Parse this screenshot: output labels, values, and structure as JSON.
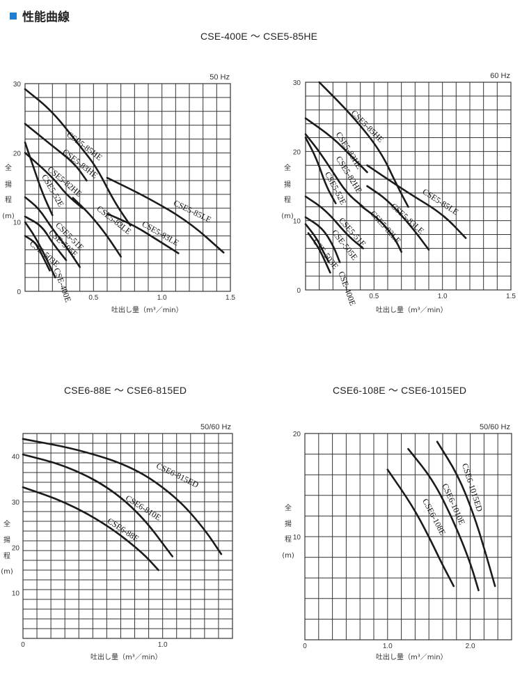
{
  "section_title": "性能曲線",
  "top_range": "CSE-400E ～ CSE5-85HE",
  "chart_data": [
    {
      "id": "c1",
      "type": "line",
      "freq": "50 Hz",
      "xlim": [
        0,
        1.5
      ],
      "ylim": [
        0,
        30
      ],
      "x_ticks": [
        "0.5",
        "1.0",
        "1.5"
      ],
      "y_ticks": [
        "0",
        "10",
        "20",
        "30"
      ],
      "xlabel": "吐出し量（m³／min）",
      "ylabel": [
        "全",
        "揚",
        "程",
        "(m)"
      ],
      "series": [
        {
          "name": "CSE5-85HE",
          "points": [
            [
              0,
              29.2
            ],
            [
              0.2,
              26
            ],
            [
              0.4,
              21
            ],
            [
              0.52,
              18
            ],
            [
              0.65,
              13
            ],
            [
              0.77,
              9.5
            ]
          ]
        },
        {
          "name": "CSE5-83HE",
          "points": [
            [
              0,
              24.2
            ],
            [
              0.2,
              21
            ],
            [
              0.36,
              18.5
            ],
            [
              0.45,
              16
            ]
          ]
        },
        {
          "name": "CSE5-82HE",
          "points": [
            [
              0,
              20
            ],
            [
              0.2,
              16.5
            ],
            [
              0.3,
              14
            ],
            [
              0.42,
              12
            ]
          ]
        },
        {
          "name": "CSE5-52E",
          "points": [
            [
              0,
              21.5
            ],
            [
              0.06,
              18
            ],
            [
              0.13,
              14
            ],
            [
              0.2,
              11
            ]
          ]
        },
        {
          "name": "CSE5-51E",
          "points": [
            [
              0,
              13.6
            ],
            [
              0.1,
              12
            ],
            [
              0.2,
              9
            ],
            [
              0.3,
              6.5
            ],
            [
              0.4,
              3.5
            ]
          ]
        },
        {
          "name": "CSE-505E",
          "points": [
            [
              0,
              10.8
            ],
            [
              0.12,
              9.5
            ],
            [
              0.2,
              7
            ],
            [
              0.3,
              4.5
            ]
          ]
        },
        {
          "name": "CSE-503E",
          "points": [
            [
              0,
              8
            ],
            [
              0.08,
              7
            ],
            [
              0.13,
              5
            ],
            [
              0.18,
              3
            ]
          ]
        },
        {
          "name": "CSE-400E",
          "points": [
            [
              0,
              10
            ],
            [
              0.07,
              8
            ],
            [
              0.15,
              5
            ],
            [
              0.22,
              2
            ]
          ]
        },
        {
          "name": "CSE5-82LE",
          "points": [
            [
              0.35,
              13.5
            ],
            [
              0.48,
              11
            ],
            [
              0.6,
              8
            ],
            [
              0.7,
              5
            ]
          ]
        },
        {
          "name": "CSE5-83LE",
          "points": [
            [
              0.6,
              11.2
            ],
            [
              0.8,
              9.5
            ],
            [
              1.0,
              7
            ],
            [
              1.12,
              5.5
            ]
          ]
        },
        {
          "name": "CSE5-85LE",
          "points": [
            [
              0.6,
              16.4
            ],
            [
              0.9,
              13.5
            ],
            [
              1.2,
              10
            ],
            [
              1.45,
              5.6
            ]
          ]
        }
      ]
    },
    {
      "id": "c2",
      "type": "line",
      "freq": "60 Hz",
      "xlim": [
        0,
        1.5
      ],
      "ylim": [
        0,
        30
      ],
      "x_ticks": [
        "0.5",
        "1.0",
        "1.5"
      ],
      "y_ticks": [
        "0",
        "10",
        "20",
        "30"
      ],
      "xlabel": "吐出し量（m³／min）",
      "ylabel": [
        "全",
        "揚",
        "程",
        "(m)"
      ],
      "series": [
        {
          "name": "CSE5-85HE",
          "points": [
            [
              0.1,
              30
            ],
            [
              0.35,
              25
            ],
            [
              0.55,
              20
            ],
            [
              0.67,
              15
            ],
            [
              0.75,
              12
            ]
          ]
        },
        {
          "name": "CSE5-83HE",
          "points": [
            [
              0,
              24.8
            ],
            [
              0.2,
              22
            ],
            [
              0.35,
              19
            ],
            [
              0.45,
              17
            ]
          ]
        },
        {
          "name": "CSE5-82HE",
          "points": [
            [
              0,
              22.5
            ],
            [
              0.1,
              20
            ],
            [
              0.2,
              17
            ],
            [
              0.3,
              14
            ],
            [
              0.42,
              12
            ]
          ]
        },
        {
          "name": "CSE5-52E",
          "points": [
            [
              0,
              22
            ],
            [
              0.08,
              19
            ],
            [
              0.15,
              15
            ],
            [
              0.22,
              12.5
            ]
          ]
        },
        {
          "name": "CSE5-51E",
          "points": [
            [
              0,
              13.5
            ],
            [
              0.15,
              11.5
            ],
            [
              0.3,
              8
            ],
            [
              0.42,
              6
            ]
          ]
        },
        {
          "name": "CSE-505E",
          "points": [
            [
              0,
              10.5
            ],
            [
              0.12,
              9
            ],
            [
              0.2,
              6.5
            ],
            [
              0.25,
              4
            ]
          ]
        },
        {
          "name": "CSE-503E",
          "points": [
            [
              0,
              9.5
            ],
            [
              0.08,
              7.5
            ],
            [
              0.13,
              5.5
            ],
            [
              0.17,
              4
            ]
          ]
        },
        {
          "name": "CSE-400E",
          "points": [
            [
              0.02,
              8.2
            ],
            [
              0.1,
              6
            ],
            [
              0.18,
              2.5
            ]
          ]
        },
        {
          "name": "CSE5-82LE",
          "points": [
            [
              0.4,
              12.2
            ],
            [
              0.55,
              10
            ],
            [
              0.65,
              7.5
            ],
            [
              0.7,
              5.5
            ]
          ]
        },
        {
          "name": "CSE5-83LE",
          "points": [
            [
              0.45,
              15
            ],
            [
              0.6,
              13
            ],
            [
              0.78,
              9
            ],
            [
              0.9,
              5.8
            ]
          ]
        },
        {
          "name": "CSE5-85LE",
          "points": [
            [
              0.45,
              18
            ],
            [
              0.75,
              14
            ],
            [
              1.0,
              11
            ],
            [
              1.17,
              7.5
            ]
          ]
        }
      ]
    },
    {
      "id": "c3",
      "type": "line",
      "freq": "50/60 Hz",
      "title": "CSE6-88E ～ CSE6-815ED",
      "xlim": [
        0,
        1.5
      ],
      "ylim": [
        0,
        45
      ],
      "x_ticks": [
        "0",
        "1.0"
      ],
      "y_ticks": [
        "10",
        "20",
        "30",
        "40"
      ],
      "xlabel": "吐出し量（m³／min）",
      "ylabel": [
        "全",
        "揚",
        "程",
        "(m)"
      ],
      "series": [
        {
          "name": "CSE6-815ED",
          "points": [
            [
              0,
              43.8
            ],
            [
              0.4,
              41.5
            ],
            [
              0.8,
              37.5
            ],
            [
              1.1,
              31
            ],
            [
              1.3,
              24
            ],
            [
              1.42,
              18.5
            ]
          ]
        },
        {
          "name": "CSE6-810E",
          "points": [
            [
              0,
              40.4
            ],
            [
              0.3,
              38
            ],
            [
              0.6,
              33.5
            ],
            [
              0.85,
              27
            ],
            [
              1.07,
              18
            ]
          ]
        },
        {
          "name": "CSE6-88E",
          "points": [
            [
              0,
              33.2
            ],
            [
              0.3,
              30
            ],
            [
              0.6,
              25
            ],
            [
              0.85,
              19
            ],
            [
              0.97,
              15
            ]
          ]
        }
      ]
    },
    {
      "id": "c4",
      "type": "line",
      "freq": "50/60 Hz",
      "title": "CSE6-108E ～ CSE6-1015ED",
      "xlim": [
        0,
        2.5
      ],
      "ylim": [
        0,
        20
      ],
      "x_ticks": [
        "0",
        "1.0",
        "2.0"
      ],
      "y_ticks": [
        "10",
        "20"
      ],
      "xlabel": "吐出し量（m³／min）",
      "ylabel": [
        "全",
        "揚",
        "程",
        "(m)"
      ],
      "series": [
        {
          "name": "CSE6-1015ED",
          "points": [
            [
              1.6,
              19.2
            ],
            [
              1.85,
              16
            ],
            [
              2.05,
              12
            ],
            [
              2.2,
              8
            ],
            [
              2.3,
              5.2
            ]
          ]
        },
        {
          "name": "CSE6-1010E",
          "points": [
            [
              1.25,
              18.5
            ],
            [
              1.55,
              15.5
            ],
            [
              1.8,
              11.5
            ],
            [
              2.0,
              7.5
            ],
            [
              2.1,
              4.8
            ]
          ]
        },
        {
          "name": "CSE6-108E",
          "points": [
            [
              1.0,
              16.5
            ],
            [
              1.3,
              13
            ],
            [
              1.5,
              10
            ],
            [
              1.65,
              7.5
            ],
            [
              1.8,
              5.2
            ]
          ]
        }
      ]
    }
  ]
}
